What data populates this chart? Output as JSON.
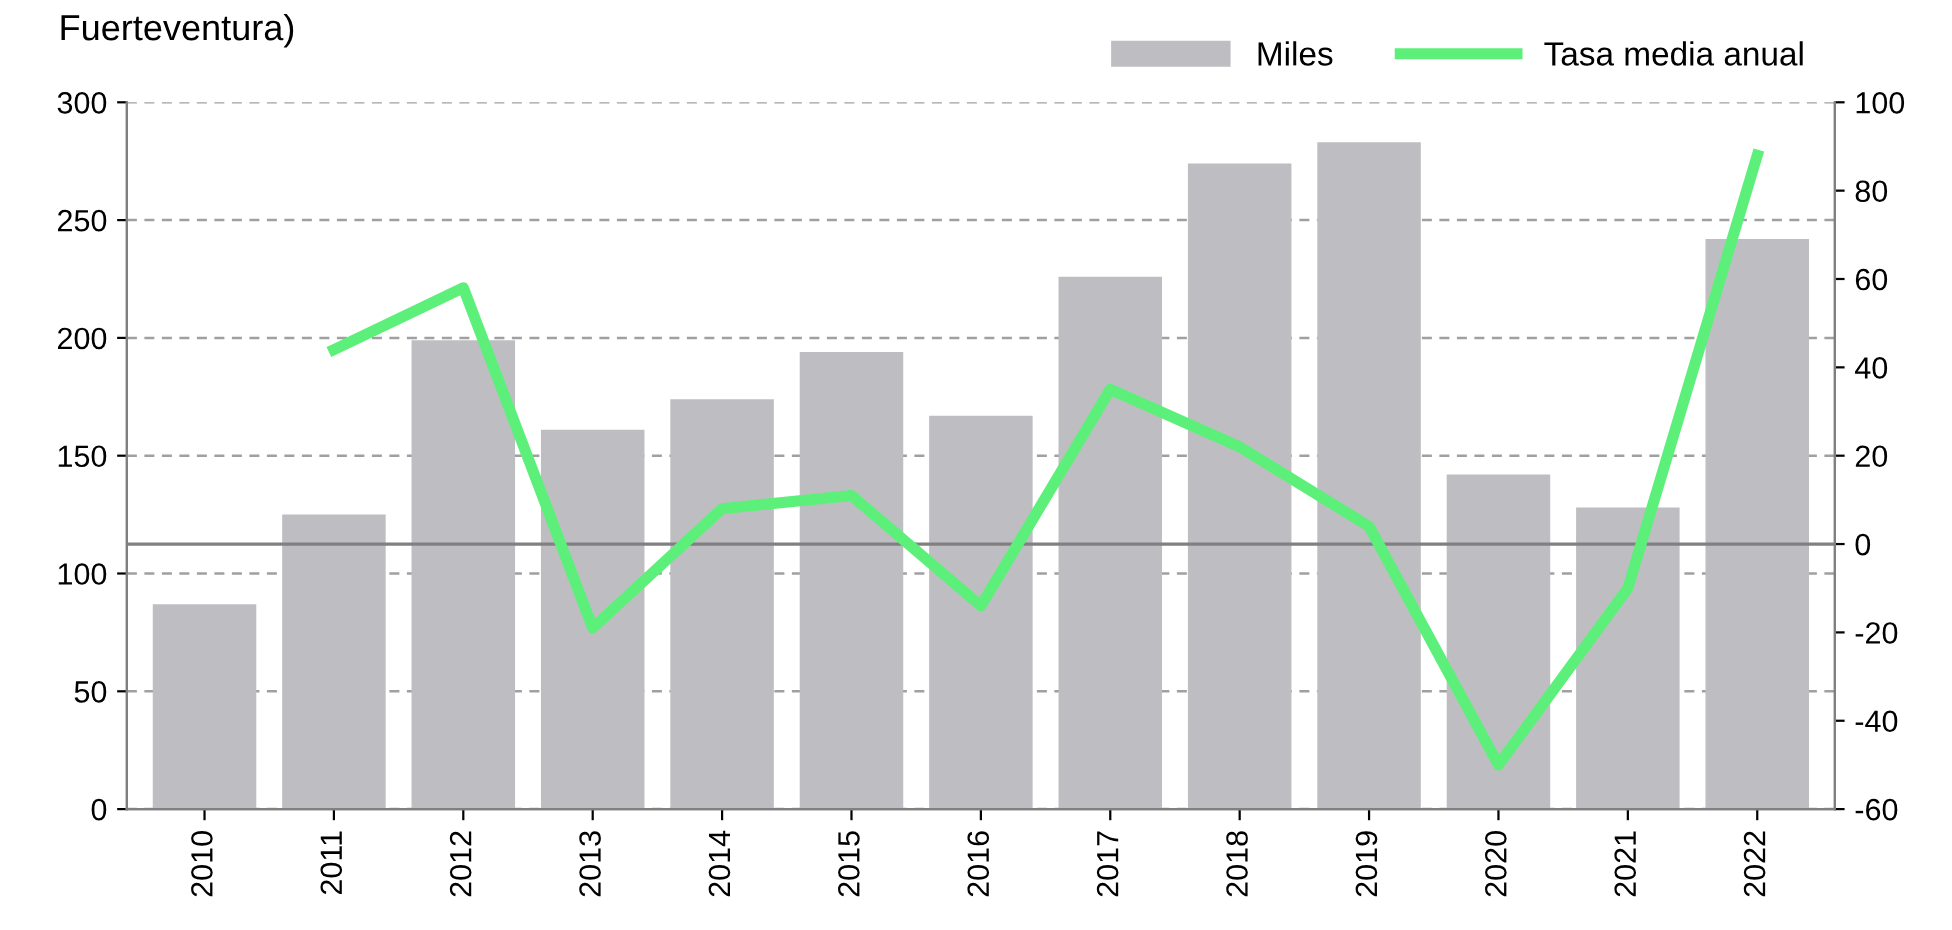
{
  "chart_data": {
    "type": "bar",
    "title": "Fuerteventura)",
    "categories": [
      "2010",
      "2011",
      "2012",
      "2013",
      "2014",
      "2015",
      "2016",
      "2017",
      "2018",
      "2019",
      "2020",
      "2021",
      "2022"
    ],
    "series": [
      {
        "name": "Miles",
        "color": "#bebec2",
        "values": [
          87,
          125,
          199,
          161,
          174,
          194,
          167,
          226,
          274,
          283,
          142,
          128,
          242
        ]
      },
      {
        "name": "Tasa media anual",
        "type": "line",
        "axis": "y2",
        "color": "#5cf07a",
        "values": [
          null,
          44,
          58,
          -19,
          8,
          11,
          -14,
          35,
          22,
          4,
          -50,
          -10,
          88
        ]
      }
    ],
    "ylim": [
      0,
      300
    ],
    "yticks": [
      0,
      50,
      100,
      150,
      200,
      250,
      300
    ],
    "y2lim": [
      -60,
      100
    ],
    "y2ticks": [
      -60,
      -40,
      -20,
      0,
      20,
      40,
      60,
      80,
      100
    ],
    "ref_lines": [
      {
        "axis": "y2",
        "value": 0,
        "color": "#808080"
      }
    ],
    "grid": "y",
    "legend": "top right",
    "marker": "none",
    "line_style": "solid"
  }
}
